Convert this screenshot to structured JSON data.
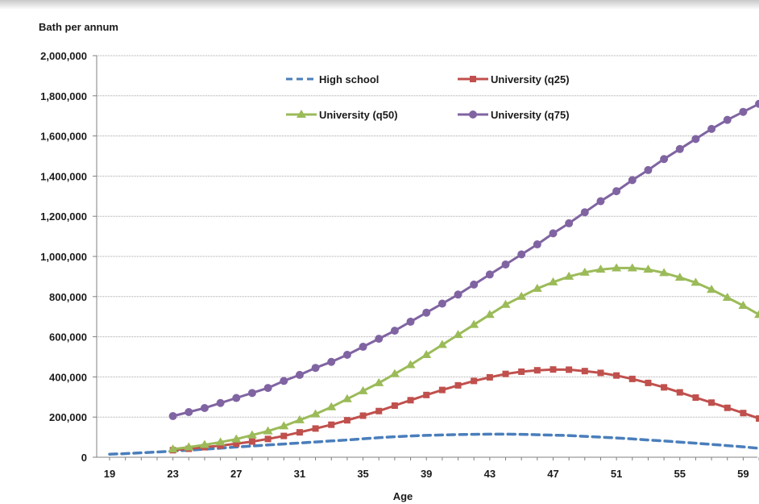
{
  "chart_data": {
    "type": "line",
    "ylabel": "Bath per annum",
    "xlabel": "Age",
    "xlim": [
      19,
      60
    ],
    "ylim": [
      0,
      2000000
    ],
    "x_ticks": [
      19,
      23,
      27,
      31,
      35,
      39,
      43,
      47,
      51,
      55,
      59
    ],
    "y_ticks": [
      {
        "value": 0,
        "label": "0"
      },
      {
        "value": 200000,
        "label": "200,000"
      },
      {
        "value": 400000,
        "label": "400,000"
      },
      {
        "value": 600000,
        "label": "600,000"
      },
      {
        "value": 800000,
        "label": "800,000"
      },
      {
        "value": 1000000,
        "label": "1,000,000"
      },
      {
        "value": 1200000,
        "label": "1,200,000"
      },
      {
        "value": 1400000,
        "label": "1,400,000"
      },
      {
        "value": 1600000,
        "label": "1,600,000"
      },
      {
        "value": 1800000,
        "label": "1,800,000"
      },
      {
        "value": 2000000,
        "label": "2,000,000"
      }
    ],
    "grid": "horizontal",
    "legend_position": "top-center",
    "series": [
      {
        "name": "High school",
        "color": "#4a7ebb",
        "style": "dashed",
        "marker": "none",
        "x": [
          19,
          20,
          21,
          22,
          23,
          24,
          25,
          26,
          27,
          28,
          29,
          30,
          31,
          32,
          33,
          34,
          35,
          36,
          37,
          38,
          39,
          40,
          41,
          42,
          43,
          44,
          45,
          46,
          47,
          48,
          49,
          50,
          51,
          52,
          53,
          54,
          55,
          56,
          57,
          58,
          59,
          60
        ],
        "values": [
          15000,
          18000,
          22000,
          26000,
          30000,
          35000,
          40000,
          45000,
          51000,
          56000,
          61000,
          66000,
          71000,
          76000,
          81000,
          86000,
          92000,
          97000,
          102000,
          106000,
          109000,
          111000,
          113000,
          114000,
          115000,
          115000,
          114000,
          112000,
          110000,
          108000,
          104000,
          100000,
          96000,
          91000,
          86000,
          81000,
          75000,
          70000,
          64000,
          58000,
          52000,
          44000
        ]
      },
      {
        "name": "University (q25)",
        "color": "#c0504d",
        "style": "solid",
        "marker": "square",
        "x": [
          23,
          24,
          25,
          26,
          27,
          28,
          29,
          30,
          31,
          32,
          33,
          34,
          35,
          36,
          37,
          38,
          39,
          40,
          41,
          42,
          43,
          44,
          45,
          46,
          47,
          48,
          49,
          50,
          51,
          52,
          53,
          54,
          55,
          56,
          57,
          58,
          59,
          60
        ],
        "values": [
          35000,
          42000,
          50000,
          58000,
          67000,
          78000,
          91000,
          106000,
          124000,
          143000,
          162000,
          184000,
          207000,
          230000,
          257000,
          284000,
          310000,
          335000,
          358000,
          380000,
          398000,
          415000,
          426000,
          433000,
          437000,
          436000,
          429000,
          420000,
          407000,
          390000,
          370000,
          348000,
          323000,
          297000,
          272000,
          246000,
          220000,
          193000
        ]
      },
      {
        "name": "University (q50)",
        "color": "#9bbb59",
        "style": "solid",
        "marker": "triangle",
        "x": [
          23,
          24,
          25,
          26,
          27,
          28,
          29,
          30,
          31,
          32,
          33,
          34,
          35,
          36,
          37,
          38,
          39,
          40,
          41,
          42,
          43,
          44,
          45,
          46,
          47,
          48,
          49,
          50,
          51,
          52,
          53,
          54,
          55,
          56,
          57,
          58,
          59,
          60
        ],
        "values": [
          40000,
          50000,
          62000,
          75000,
          90000,
          110000,
          130000,
          155000,
          185000,
          215000,
          250000,
          290000,
          330000,
          370000,
          415000,
          460000,
          510000,
          560000,
          610000,
          660000,
          710000,
          760000,
          800000,
          840000,
          872000,
          900000,
          920000,
          935000,
          942000,
          942000,
          935000,
          918000,
          895000,
          870000,
          835000,
          795000,
          755000,
          710000
        ]
      },
      {
        "name": "University (q75)",
        "color": "#8064a2",
        "style": "solid",
        "marker": "circle",
        "x": [
          23,
          24,
          25,
          26,
          27,
          28,
          29,
          30,
          31,
          32,
          33,
          34,
          35,
          36,
          37,
          38,
          39,
          40,
          41,
          42,
          43,
          44,
          45,
          46,
          47,
          48,
          49,
          50,
          51,
          52,
          53,
          54,
          55,
          56,
          57,
          58,
          59,
          60
        ],
        "values": [
          205000,
          225000,
          245000,
          270000,
          295000,
          320000,
          345000,
          380000,
          410000,
          445000,
          475000,
          510000,
          550000,
          590000,
          630000,
          675000,
          720000,
          765000,
          810000,
          860000,
          910000,
          960000,
          1010000,
          1060000,
          1115000,
          1165000,
          1220000,
          1275000,
          1325000,
          1380000,
          1430000,
          1485000,
          1535000,
          1585000,
          1635000,
          1680000,
          1720000,
          1760000
        ]
      }
    ]
  }
}
